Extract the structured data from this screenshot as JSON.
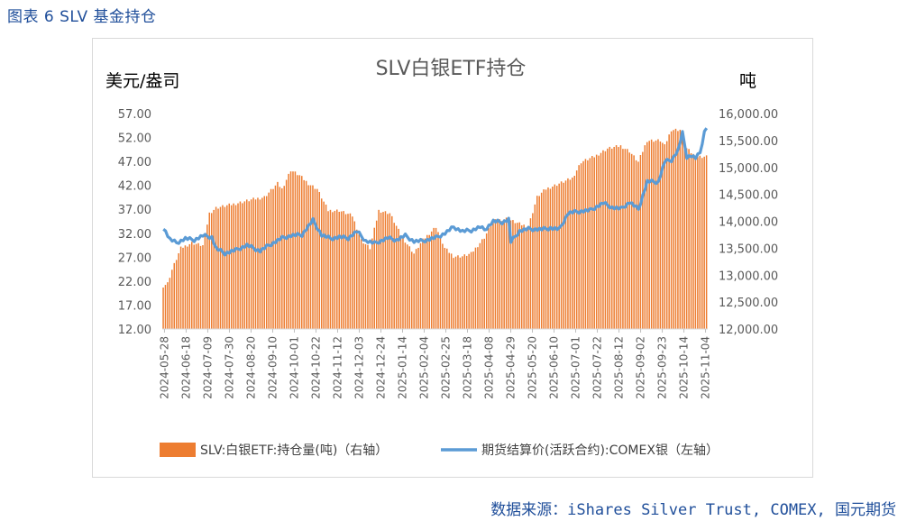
{
  "caption": "图表 6 SLV 基金持仓",
  "source": "数据来源：iShares Silver Trust, COMEX, 国元期货",
  "chart_data": {
    "type": "bar+line",
    "title": "SLV白银ETF持仓",
    "left_unit": "美元/盎司",
    "right_unit": "吨",
    "left_axis": {
      "min": 12,
      "max": 57,
      "ticks": [
        "12.00",
        "17.00",
        "22.00",
        "27.00",
        "32.00",
        "37.00",
        "42.00",
        "47.00",
        "52.00",
        "57.00"
      ]
    },
    "right_axis": {
      "min": 12000,
      "max": 16000,
      "ticks": [
        "12,000.00",
        "12,500.00",
        "13,000.00",
        "13,500.00",
        "14,000.00",
        "14,500.00",
        "15,000.00",
        "15,500.00",
        "16,000.00"
      ]
    },
    "x_ticks": [
      "2024-05-28",
      "2024-06-18",
      "2024-07-09",
      "2024-07-30",
      "2024-08-20",
      "2024-09-10",
      "2024-10-01",
      "2024-10-22",
      "2024-11-12",
      "2024-12-03",
      "2024-12-24",
      "2025-01-14",
      "2025-02-04",
      "2025-02-25",
      "2025-03-18",
      "2025-04-08",
      "2025-04-29",
      "2025-05-20",
      "2025-06-10",
      "2025-07-01",
      "2025-07-22",
      "2025-08-12",
      "2025-09-02",
      "2025-09-23",
      "2025-10-14",
      "2025-11-04"
    ],
    "holdings_anchors": [
      [
        0,
        12800
      ],
      [
        2,
        12850
      ],
      [
        4,
        13100
      ],
      [
        8,
        13500
      ],
      [
        13,
        13600
      ],
      [
        18,
        13550
      ],
      [
        21,
        14150
      ],
      [
        24,
        14250
      ],
      [
        30,
        14300
      ],
      [
        40,
        14400
      ],
      [
        46,
        14450
      ],
      [
        52,
        14700
      ],
      [
        54,
        14600
      ],
      [
        58,
        14950
      ],
      [
        62,
        14850
      ],
      [
        66,
        14700
      ],
      [
        70,
        14600
      ],
      [
        75,
        14200
      ],
      [
        80,
        14200
      ],
      [
        86,
        14100
      ],
      [
        90,
        13650
      ],
      [
        94,
        13500
      ],
      [
        98,
        14200
      ],
      [
        103,
        14150
      ],
      [
        108,
        13750
      ],
      [
        114,
        13400
      ],
      [
        118,
        13650
      ],
      [
        124,
        13900
      ],
      [
        128,
        13500
      ],
      [
        132,
        13350
      ],
      [
        136,
        13350
      ],
      [
        140,
        13400
      ],
      [
        146,
        13700
      ],
      [
        150,
        14000
      ],
      [
        156,
        14050
      ],
      [
        162,
        13950
      ],
      [
        166,
        13900
      ],
      [
        170,
        14450
      ],
      [
        174,
        14600
      ],
      [
        180,
        14700
      ],
      [
        186,
        14800
      ],
      [
        190,
        15100
      ],
      [
        196,
        15200
      ],
      [
        202,
        15350
      ],
      [
        208,
        15400
      ],
      [
        212,
        15300
      ],
      [
        216,
        15100
      ],
      [
        220,
        15500
      ],
      [
        226,
        15500
      ],
      [
        228,
        15400
      ],
      [
        231,
        15700
      ],
      [
        235,
        15700
      ],
      [
        238,
        15350
      ],
      [
        242,
        15200
      ],
      [
        245,
        15200
      ]
    ],
    "price_anchors": [
      [
        0,
        33.2
      ],
      [
        3,
        30.7
      ],
      [
        6,
        30.0
      ],
      [
        10,
        30.9
      ],
      [
        14,
        30.6
      ],
      [
        18,
        31.5
      ],
      [
        22,
        31.2
      ],
      [
        24,
        28.8
      ],
      [
        28,
        27.8
      ],
      [
        33,
        28.5
      ],
      [
        38,
        29.5
      ],
      [
        44,
        28.3
      ],
      [
        48,
        29.5
      ],
      [
        54,
        31.0
      ],
      [
        58,
        31.5
      ],
      [
        63,
        31.7
      ],
      [
        68,
        34.7
      ],
      [
        72,
        31.6
      ],
      [
        76,
        30.9
      ],
      [
        80,
        31.2
      ],
      [
        84,
        31.0
      ],
      [
        88,
        32.4
      ],
      [
        92,
        30.4
      ],
      [
        96,
        29.9
      ],
      [
        102,
        31.0
      ],
      [
        106,
        30.6
      ],
      [
        110,
        31.5
      ],
      [
        114,
        30.3
      ],
      [
        118,
        30.4
      ],
      [
        124,
        31.1
      ],
      [
        128,
        32.0
      ],
      [
        132,
        33.3
      ],
      [
        136,
        32.4
      ],
      [
        140,
        32.6
      ],
      [
        144,
        33.3
      ],
      [
        146,
        32.7
      ],
      [
        150,
        34.5
      ],
      [
        154,
        34.3
      ],
      [
        157,
        34.9
      ],
      [
        158,
        30.2
      ],
      [
        162,
        32.5
      ],
      [
        166,
        32.9
      ],
      [
        172,
        32.8
      ],
      [
        176,
        33.1
      ],
      [
        180,
        32.8
      ],
      [
        184,
        36.2
      ],
      [
        188,
        36.5
      ],
      [
        194,
        36.8
      ],
      [
        200,
        38.3
      ],
      [
        204,
        37.4
      ],
      [
        208,
        37.1
      ],
      [
        212,
        38.5
      ],
      [
        216,
        37.0
      ],
      [
        220,
        42.8
      ],
      [
        225,
        42.7
      ],
      [
        228,
        47.0
      ],
      [
        231,
        47.3
      ],
      [
        234,
        49.3
      ],
      [
        236,
        52.9
      ],
      [
        238,
        48.0
      ],
      [
        240,
        48.2
      ],
      [
        242,
        47.7
      ],
      [
        244,
        48.8
      ],
      [
        246,
        53.2
      ],
      [
        247,
        54.2
      ]
    ],
    "series": [
      {
        "name": "SLV:白银ETF:持仓量(吨)（右轴）",
        "type": "bar",
        "axis": "right",
        "color": "#ed7d31"
      },
      {
        "name": "期货结算价(活跃合约):COMEX银（左轴）",
        "type": "line",
        "axis": "left",
        "color": "#5b9bd5"
      }
    ]
  }
}
